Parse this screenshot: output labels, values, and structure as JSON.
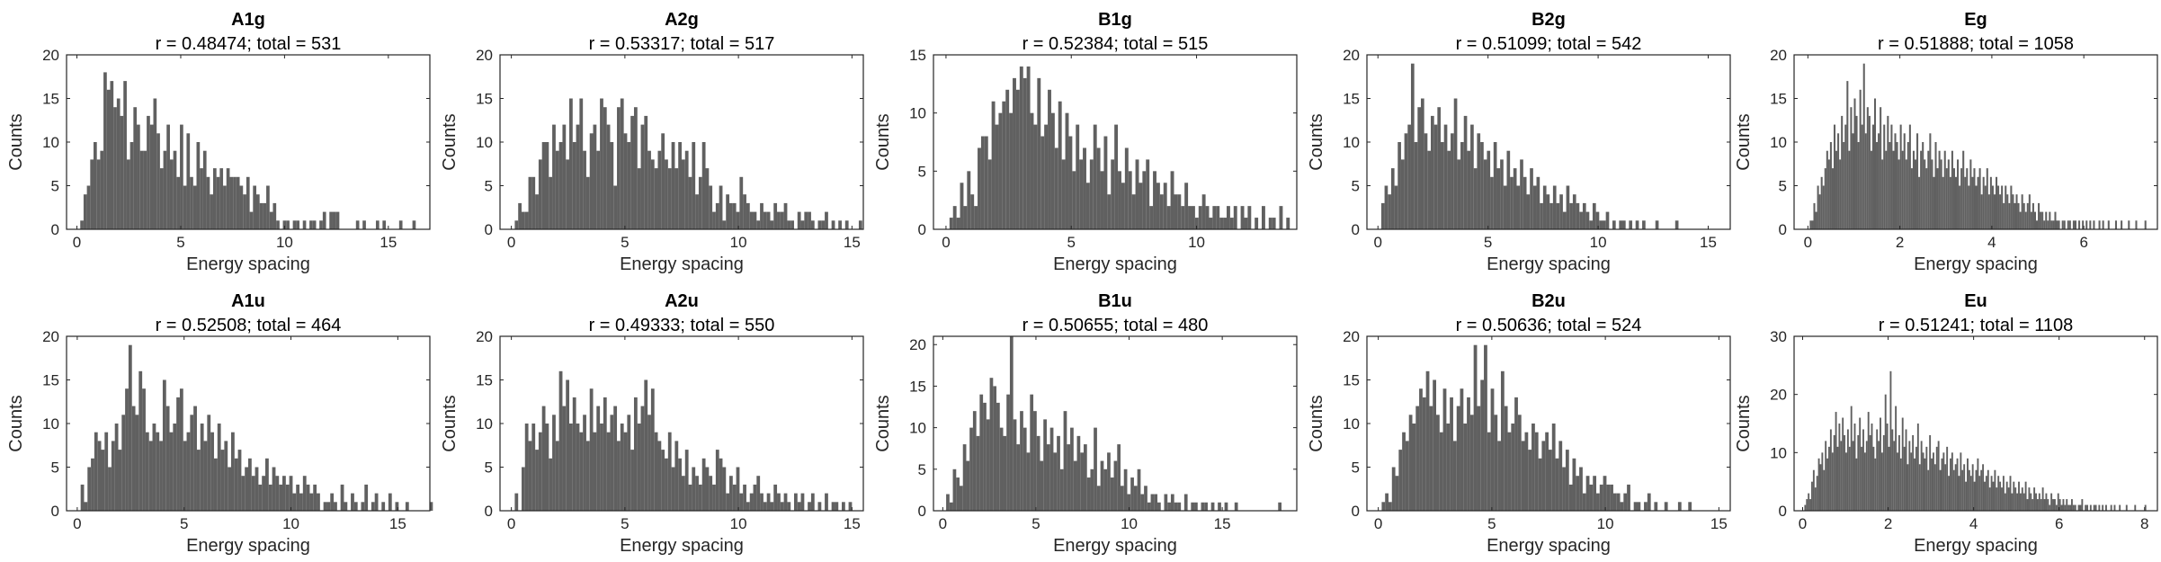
{
  "figure": {
    "background": "#ffffff",
    "bar_color": "#606060",
    "axis_color": "#262626"
  },
  "chart_data": [
    {
      "type": "bar",
      "title": "A1g",
      "subtitle": "r = 0.48474; total = 531",
      "xlabel": "Energy spacing",
      "ylabel": "Counts",
      "xlim": [
        -0.5,
        17
      ],
      "ylim": [
        0,
        20
      ],
      "xticks": [
        0,
        5,
        10,
        15
      ],
      "yticks": [
        0,
        5,
        10,
        15,
        20
      ],
      "bin_width": 0.16,
      "bin_start": 0.0,
      "values": [
        0,
        1,
        4,
        5,
        8,
        10,
        8,
        9,
        18,
        16,
        17,
        14,
        15,
        13,
        17,
        8,
        10,
        14,
        12,
        9,
        9,
        13,
        12,
        15,
        11,
        7,
        9,
        12,
        8,
        9,
        6,
        12,
        5,
        11,
        6,
        5,
        10,
        7,
        9,
        6,
        4,
        7,
        6,
        7,
        5,
        7,
        6,
        6,
        6,
        5,
        4,
        6,
        2,
        5,
        4,
        3,
        3,
        5,
        2,
        3,
        1,
        0,
        1,
        1,
        0,
        1,
        1,
        0,
        1,
        0,
        1,
        1,
        0,
        1,
        2,
        0,
        2,
        2,
        2,
        0,
        0,
        0,
        0,
        0,
        1,
        0,
        1,
        0,
        0,
        0,
        1,
        0,
        1,
        0,
        0,
        0,
        0,
        1,
        0,
        0,
        0,
        1,
        0,
        0
      ]
    },
    {
      "type": "bar",
      "title": "A2g",
      "subtitle": "r = 0.53317; total = 517",
      "xlabel": "Energy spacing",
      "ylabel": "Counts",
      "xlim": [
        -0.5,
        15.5
      ],
      "ylim": [
        0,
        20
      ],
      "xticks": [
        0,
        5,
        10,
        15
      ],
      "yticks": [
        0,
        5,
        10,
        15,
        20
      ],
      "bin_width": 0.15,
      "bin_start": 0.0,
      "values": [
        0,
        1,
        3,
        2,
        2,
        6,
        6,
        4,
        8,
        10,
        10,
        6,
        12,
        9,
        10,
        12,
        8,
        15,
        10,
        12,
        15,
        9,
        6,
        11,
        12,
        9,
        15,
        14,
        12,
        10,
        5,
        14,
        15,
        11,
        10,
        13,
        14,
        7,
        12,
        13,
        9,
        8,
        7,
        9,
        11,
        8,
        7,
        10,
        7,
        10,
        8,
        9,
        6,
        10,
        4,
        6,
        10,
        7,
        5,
        2,
        3,
        5,
        1,
        4,
        3,
        3,
        2,
        6,
        4,
        3,
        2,
        2,
        1,
        3,
        2,
        2,
        1,
        3,
        2,
        2,
        3,
        1,
        1,
        0,
        2,
        1,
        2,
        2,
        1,
        0,
        1,
        1,
        2,
        0,
        1,
        0,
        1,
        0,
        1,
        0,
        0,
        0,
        1
      ]
    },
    {
      "type": "bar",
      "title": "B1g",
      "subtitle": "r = 0.52384; total = 515",
      "xlabel": "Energy spacing",
      "ylabel": "Counts",
      "xlim": [
        -0.5,
        14
      ],
      "ylim": [
        0,
        15
      ],
      "xticks": [
        0,
        5,
        10
      ],
      "yticks": [
        0,
        5,
        10,
        15
      ],
      "bin_width": 0.14,
      "bin_start": 0.0,
      "values": [
        0,
        1,
        2,
        1,
        4,
        2,
        5,
        3,
        2,
        7,
        8,
        8,
        6,
        11,
        9,
        10,
        11,
        12,
        10,
        13,
        12,
        14,
        13,
        14,
        10,
        9,
        13,
        8,
        9,
        12,
        10,
        7,
        11,
        6,
        10,
        8,
        5,
        9,
        6,
        7,
        4,
        6,
        9,
        7,
        5,
        8,
        3,
        6,
        9,
        5,
        4,
        7,
        5,
        3,
        6,
        4,
        5,
        6,
        2,
        5,
        4,
        3,
        4,
        2,
        5,
        3,
        3,
        2,
        4,
        2,
        2,
        1,
        2,
        3,
        2,
        1,
        2,
        2,
        1,
        1,
        2,
        1,
        2,
        0,
        2,
        1,
        2,
        0,
        1,
        0,
        2,
        0,
        1,
        1,
        0,
        2,
        0,
        1,
        0
      ]
    },
    {
      "type": "bar",
      "title": "B2g",
      "subtitle": "r = 0.51099; total = 542",
      "xlabel": "Energy spacing",
      "ylabel": "Counts",
      "xlim": [
        -0.5,
        16
      ],
      "ylim": [
        0,
        20
      ],
      "xticks": [
        0,
        5,
        10,
        15
      ],
      "yticks": [
        0,
        5,
        10,
        15,
        20
      ],
      "bin_width": 0.15,
      "bin_start": 0.0,
      "values": [
        0,
        3,
        5,
        4,
        7,
        5,
        10,
        8,
        11,
        12,
        19,
        10,
        14,
        15,
        11,
        9,
        13,
        12,
        14,
        10,
        12,
        9,
        11,
        15,
        8,
        10,
        13,
        9,
        12,
        7,
        11,
        10,
        8,
        9,
        6,
        10,
        7,
        8,
        5,
        9,
        6,
        7,
        5,
        8,
        6,
        4,
        7,
        5,
        6,
        3,
        5,
        4,
        3,
        5,
        3,
        4,
        2,
        5,
        3,
        4,
        3,
        2,
        3,
        2,
        1,
        3,
        2,
        1,
        1,
        2,
        0,
        1,
        0,
        1,
        1,
        0,
        1,
        0,
        1,
        0,
        1,
        0,
        0,
        0,
        1,
        0,
        0,
        0,
        0,
        0,
        1
      ]
    },
    {
      "type": "bar",
      "title": "Eg",
      "subtitle": "r = 0.51888; total = 1058",
      "xlabel": "Energy spacing",
      "ylabel": "Counts",
      "xlim": [
        -0.3,
        7.6
      ],
      "ylim": [
        0,
        20
      ],
      "xticks": [
        0,
        2,
        4,
        6
      ],
      "yticks": [
        0,
        5,
        10,
        15,
        20
      ],
      "bin_width": 0.04,
      "bin_start": 0.0,
      "values": [
        0,
        1,
        1,
        3,
        2,
        5,
        4,
        6,
        5,
        7,
        9,
        8,
        10,
        7,
        12,
        9,
        11,
        8,
        13,
        10,
        12,
        17,
        9,
        14,
        11,
        15,
        13,
        10,
        16,
        12,
        19,
        11,
        14,
        13,
        9,
        12,
        15,
        10,
        11,
        14,
        8,
        12,
        9,
        13,
        10,
        12,
        9,
        11,
        10,
        8,
        12,
        9,
        11,
        8,
        10,
        12,
        7,
        9,
        8,
        11,
        6,
        9,
        10,
        8,
        7,
        9,
        11,
        8,
        6,
        10,
        7,
        9,
        8,
        6,
        9,
        7,
        8,
        6,
        9,
        7,
        6,
        8,
        5,
        7,
        9,
        6,
        7,
        5,
        8,
        6,
        7,
        5,
        6,
        7,
        4,
        6,
        5,
        7,
        4,
        6,
        5,
        4,
        6,
        5,
        4,
        5,
        3,
        5,
        4,
        3,
        5,
        4,
        3,
        4,
        3,
        2,
        4,
        3,
        2,
        3,
        4,
        2,
        3,
        2,
        1,
        3,
        2,
        2,
        1,
        2,
        1,
        2,
        1,
        1,
        2,
        1,
        1,
        0,
        1,
        1,
        0,
        1,
        1,
        0,
        1,
        1,
        0,
        1,
        0,
        1,
        0,
        1,
        0,
        1,
        0,
        1,
        0,
        0,
        1,
        0,
        1,
        0,
        0,
        1,
        0,
        0,
        0,
        1,
        0,
        0,
        1,
        0,
        0,
        0,
        1,
        0,
        0,
        0,
        1,
        0,
        0,
        0,
        0,
        1
      ]
    },
    {
      "type": "bar",
      "title": "A1u",
      "subtitle": "r = 0.52508; total = 464",
      "xlabel": "Energy spacing",
      "ylabel": "Counts",
      "xlim": [
        -0.5,
        16.5
      ],
      "ylim": [
        0,
        20
      ],
      "xticks": [
        0,
        5,
        10,
        15
      ],
      "yticks": [
        0,
        5,
        10,
        15,
        20
      ],
      "bin_width": 0.16,
      "bin_start": 0.0,
      "values": [
        0,
        3,
        1,
        5,
        6,
        9,
        8,
        7,
        9,
        5,
        8,
        10,
        7,
        11,
        14,
        19,
        12,
        11,
        16,
        14,
        9,
        8,
        10,
        9,
        8,
        15,
        12,
        9,
        10,
        13,
        14,
        8,
        9,
        11,
        12,
        7,
        10,
        8,
        11,
        9,
        6,
        10,
        7,
        8,
        5,
        9,
        6,
        7,
        4,
        5,
        6,
        4,
        5,
        3,
        4,
        6,
        3,
        5,
        4,
        3,
        4,
        3,
        4,
        2,
        3,
        2,
        4,
        3,
        2,
        3,
        2,
        0,
        1,
        1,
        2,
        1,
        0,
        3,
        1,
        0,
        2,
        1,
        0,
        1,
        3,
        0,
        1,
        2,
        0,
        1,
        0,
        2,
        0,
        1,
        0,
        0,
        1,
        0,
        0,
        0,
        0,
        0,
        0,
        1
      ]
    },
    {
      "type": "bar",
      "title": "A2u",
      "subtitle": "r = 0.49333; total = 550",
      "xlabel": "Energy spacing",
      "ylabel": "Counts",
      "xlim": [
        -0.5,
        15.5
      ],
      "ylim": [
        0,
        20
      ],
      "xticks": [
        0,
        5,
        10,
        15
      ],
      "yticks": [
        0,
        5,
        10,
        15,
        20
      ],
      "bin_width": 0.15,
      "bin_start": 0.0,
      "values": [
        0,
        2,
        0,
        5,
        10,
        8,
        10,
        7,
        9,
        12,
        10,
        6,
        11,
        8,
        16,
        12,
        15,
        10,
        13,
        10,
        9,
        11,
        8,
        14,
        9,
        12,
        10,
        13,
        9,
        11,
        12,
        8,
        10,
        9,
        11,
        7,
        13,
        10,
        12,
        15,
        11,
        14,
        9,
        8,
        7,
        6,
        9,
        5,
        8,
        6,
        4,
        7,
        3,
        5,
        4,
        3,
        6,
        5,
        4,
        3,
        7,
        6,
        5,
        2,
        4,
        3,
        5,
        2,
        3,
        1,
        2,
        3,
        4,
        2,
        1,
        2,
        1,
        3,
        2,
        1,
        2,
        1,
        0,
        2,
        1,
        2,
        0,
        1,
        2,
        0,
        1,
        0,
        2,
        0,
        1,
        1,
        0,
        1,
        0,
        1
      ]
    },
    {
      "type": "bar",
      "title": "B1u",
      "subtitle": "r = 0.50655; total = 480",
      "xlabel": "Energy spacing",
      "ylabel": "Counts",
      "xlim": [
        -0.5,
        19
      ],
      "ylim": [
        0,
        21
      ],
      "xticks": [
        0,
        5,
        10,
        15
      ],
      "yticks": [
        0,
        5,
        10,
        15,
        20
      ],
      "bin_width": 0.18,
      "bin_start": 0.0,
      "values": [
        0,
        2,
        1,
        5,
        4,
        3,
        8,
        6,
        10,
        12,
        9,
        14,
        13,
        11,
        16,
        15,
        13,
        10,
        9,
        14,
        21,
        11,
        8,
        12,
        10,
        7,
        14,
        12,
        9,
        6,
        11,
        8,
        10,
        7,
        9,
        5,
        12,
        8,
        10,
        6,
        9,
        7,
        8,
        4,
        5,
        10,
        3,
        6,
        5,
        7,
        4,
        6,
        8,
        3,
        5,
        2,
        4,
        3,
        5,
        2,
        3,
        1,
        2,
        2,
        1,
        0,
        2,
        1,
        2,
        1,
        1,
        0,
        2,
        0,
        1,
        1,
        0,
        1,
        1,
        0,
        1,
        0,
        1,
        0,
        1,
        0,
        0,
        1,
        0,
        0,
        0,
        0,
        0,
        0,
        0,
        0,
        0,
        0,
        0,
        0,
        1
      ]
    },
    {
      "type": "bar",
      "title": "B2u",
      "subtitle": "r = 0.50636; total = 524",
      "xlabel": "Energy spacing",
      "ylabel": "Counts",
      "xlim": [
        -0.5,
        15.5
      ],
      "ylim": [
        0,
        20
      ],
      "xticks": [
        0,
        5,
        10,
        15
      ],
      "yticks": [
        0,
        5,
        10,
        15,
        20
      ],
      "bin_width": 0.15,
      "bin_start": 0.0,
      "values": [
        0,
        1,
        2,
        1,
        5,
        4,
        7,
        9,
        8,
        11,
        10,
        12,
        14,
        13,
        16,
        12,
        15,
        11,
        9,
        14,
        10,
        13,
        8,
        12,
        14,
        10,
        13,
        11,
        19,
        12,
        15,
        19,
        9,
        14,
        11,
        8,
        16,
        12,
        9,
        10,
        13,
        11,
        8,
        9,
        7,
        10,
        9,
        6,
        8,
        9,
        7,
        10,
        6,
        8,
        5,
        7,
        3,
        6,
        4,
        5,
        2,
        4,
        3,
        4,
        2,
        3,
        4,
        3,
        3,
        2,
        2,
        1,
        2,
        3,
        0,
        1,
        1,
        0,
        1,
        2,
        0,
        1,
        0,
        0,
        1,
        0,
        0,
        0,
        1,
        0,
        0,
        1
      ]
    },
    {
      "type": "bar",
      "title": "Eu",
      "subtitle": "r = 0.51241; total = 1108",
      "xlabel": "Energy spacing",
      "ylabel": "Counts",
      "xlim": [
        -0.2,
        8.3
      ],
      "ylim": [
        0,
        30
      ],
      "xticks": [
        0,
        2,
        4,
        6,
        8
      ],
      "yticks": [
        0,
        10,
        20,
        30
      ],
      "bin_width": 0.04,
      "bin_start": 0.0,
      "values": [
        0,
        1,
        2,
        3,
        2,
        5,
        7,
        4,
        6,
        9,
        8,
        10,
        7,
        12,
        9,
        11,
        14,
        10,
        13,
        17,
        11,
        15,
        12,
        16,
        13,
        10,
        14,
        11,
        18,
        12,
        15,
        9,
        13,
        16,
        11,
        14,
        10,
        12,
        17,
        13,
        15,
        11,
        9,
        14,
        12,
        16,
        10,
        13,
        20,
        15,
        11,
        24,
        14,
        12,
        18,
        10,
        13,
        9,
        16,
        11,
        14,
        8,
        12,
        10,
        13,
        9,
        11,
        15,
        8,
        12,
        10,
        9,
        11,
        7,
        13,
        9,
        10,
        8,
        11,
        12,
        7,
        9,
        10,
        8,
        11,
        6,
        9,
        10,
        7,
        8,
        9,
        6,
        10,
        7,
        8,
        5,
        9,
        7,
        6,
        8,
        5,
        7,
        9,
        6,
        7,
        8,
        5,
        6,
        7,
        4,
        6,
        5,
        7,
        4,
        6,
        5,
        4,
        6,
        3,
        5,
        4,
        6,
        3,
        5,
        4,
        3,
        5,
        3,
        4,
        3,
        5,
        2,
        4,
        3,
        2,
        4,
        3,
        2,
        3,
        2,
        4,
        2,
        3,
        2,
        1,
        3,
        2,
        2,
        1,
        3,
        2,
        1,
        2,
        1,
        2,
        1,
        1,
        2,
        1,
        1,
        0,
        1,
        1,
        2,
        0,
        1,
        1,
        0,
        1,
        0,
        1,
        1,
        0,
        1,
        0,
        1,
        0,
        1,
        0,
        0,
        1,
        0,
        1,
        0,
        0,
        1,
        0,
        0,
        0,
        1,
        0,
        0,
        0,
        0,
        1,
        0,
        0,
        0,
        0,
        0,
        1
      ]
    }
  ]
}
